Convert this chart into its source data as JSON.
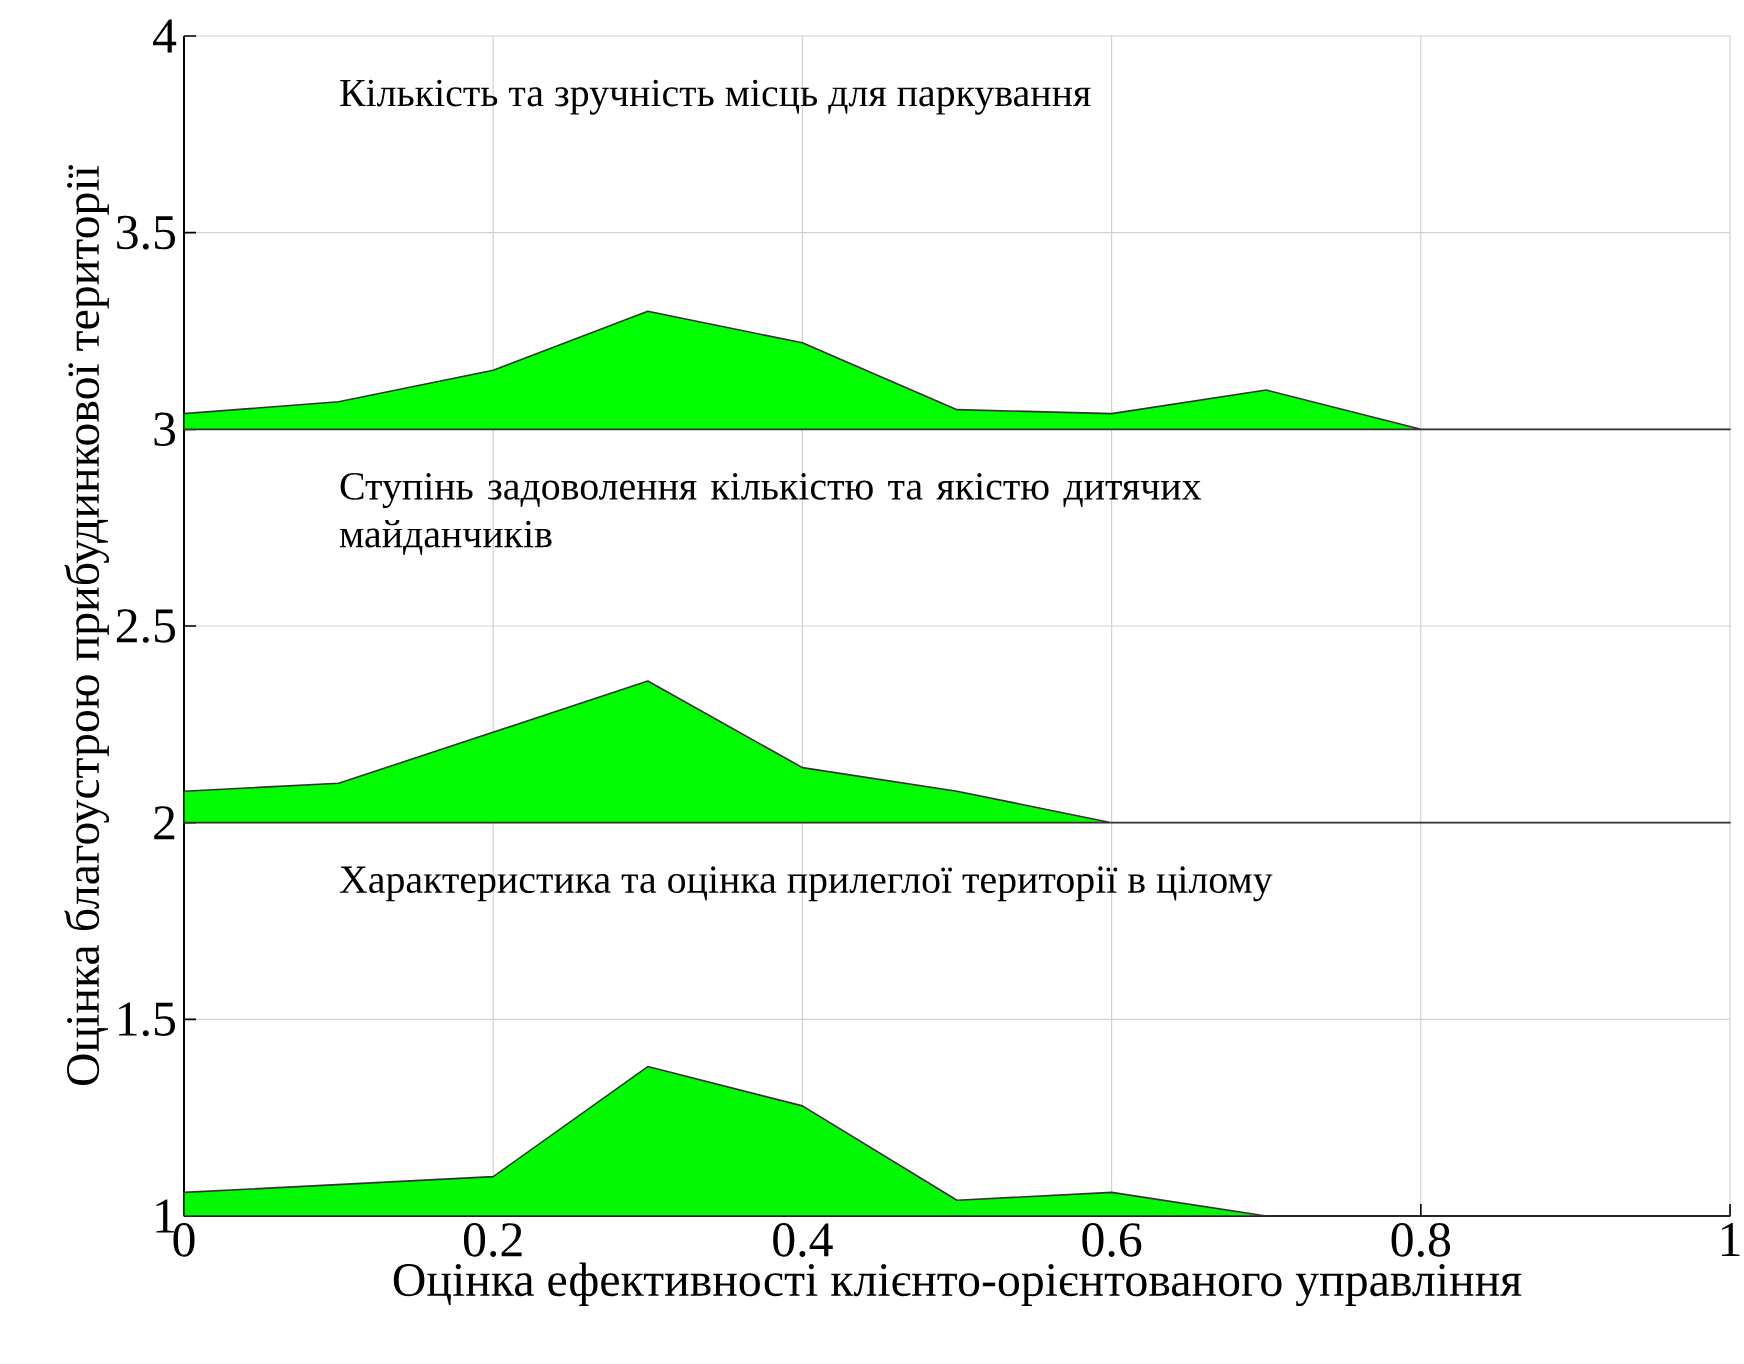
{
  "chart_data": {
    "type": "area",
    "xlabel": "Оцінка ефективності клієнто-орієнтованого управління",
    "ylabel": "Оцінка благоустрою прибудинкової території",
    "x": [
      0,
      0.1,
      0.2,
      0.3,
      0.4,
      0.5,
      0.6,
      0.7,
      0.8,
      0.9,
      1.0
    ],
    "series": [
      {
        "color": "#00ff00",
        "values": [
          3.04,
          3.07,
          3.15,
          3.3,
          3.22,
          3.05,
          3.04,
          3.1,
          3.0,
          3.0,
          3.0
        ]
      },
      {
        "color": "#02fc02",
        "values": [
          2.08,
          2.1,
          2.23,
          2.36,
          2.14,
          2.08,
          2.0,
          2.0,
          2.0,
          2.0,
          2.0
        ]
      },
      {
        "color": "#04f904",
        "values": [
          1.06,
          1.08,
          1.1,
          1.38,
          1.28,
          1.04,
          1.06,
          1.0,
          1.0,
          1.0,
          1.0
        ]
      }
    ],
    "annotations": [
      "Кількість та зручність місць для паркування",
      "Ступінь задоволення кількістю та якістю дитячих майданчиків",
      "Характеристика та оцінка прилеглої території в цілому"
    ],
    "xlim": [
      0,
      1
    ],
    "ylim": [
      1,
      4
    ],
    "xticks": [
      0,
      0.2,
      0.4,
      0.6,
      0.8,
      1
    ],
    "yticks": [
      1,
      1.5,
      2,
      2.5,
      3,
      3.5,
      4
    ],
    "grid": true
  }
}
